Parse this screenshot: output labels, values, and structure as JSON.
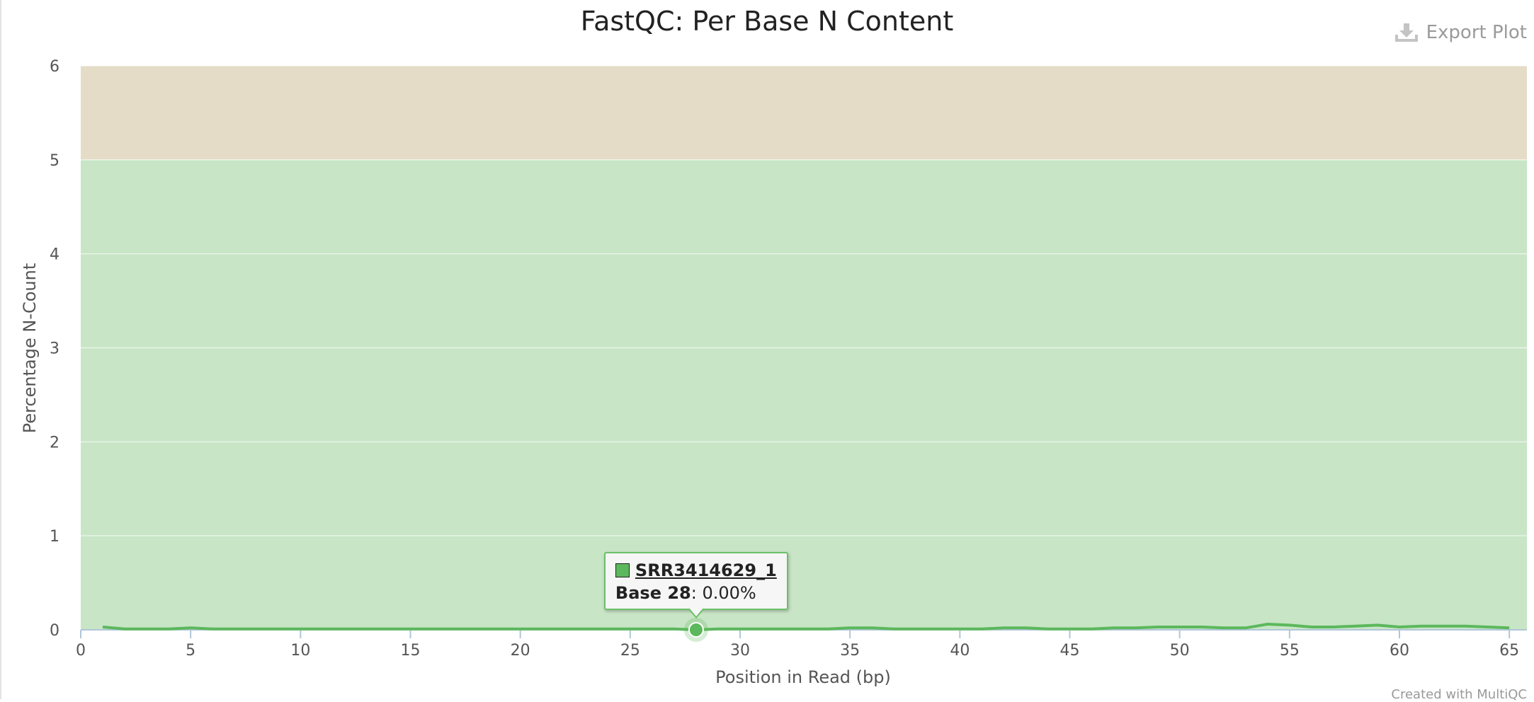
{
  "export_label": "Export Plot",
  "export_icon": "download-icon",
  "credit": "Created with MultiQC",
  "colors": {
    "pass_band": "#c8e5c6",
    "warn_band": "#e4dcc6",
    "series": "#5cb85c"
  },
  "tooltip": {
    "series_name": "SRR3414629_1",
    "base_label": "Base 28",
    "value_text": ": 0.00%"
  },
  "chart_data": {
    "type": "line",
    "title": "FastQC: Per Base N Content",
    "xlabel": "Position in Read (bp)",
    "ylabel": "Percentage N-Count",
    "xlim": [
      0,
      65.8
    ],
    "ylim": [
      0,
      6
    ],
    "x_ticks": [
      0,
      5,
      10,
      15,
      20,
      25,
      30,
      35,
      40,
      45,
      50,
      55,
      60,
      65
    ],
    "y_ticks": [
      0,
      1,
      2,
      3,
      4,
      5,
      6
    ],
    "bands": [
      {
        "from": 0,
        "to": 5,
        "status": "pass"
      },
      {
        "from": 5,
        "to": 6,
        "status": "warn"
      }
    ],
    "highlight": {
      "x": 28,
      "y": 0.0
    },
    "series": [
      {
        "name": "SRR3414629_1",
        "x": [
          1,
          2,
          3,
          4,
          5,
          6,
          7,
          8,
          9,
          10,
          11,
          12,
          13,
          14,
          15,
          16,
          17,
          18,
          19,
          20,
          21,
          22,
          23,
          24,
          25,
          26,
          27,
          28,
          29,
          30,
          31,
          32,
          33,
          34,
          35,
          36,
          37,
          38,
          39,
          40,
          41,
          42,
          43,
          44,
          45,
          46,
          47,
          48,
          49,
          50,
          51,
          52,
          53,
          54,
          55,
          56,
          57,
          58,
          59,
          60,
          61,
          62,
          63,
          64,
          65
        ],
        "values": [
          0.03,
          0.01,
          0.01,
          0.01,
          0.02,
          0.01,
          0.01,
          0.01,
          0.01,
          0.01,
          0.01,
          0.01,
          0.01,
          0.01,
          0.01,
          0.01,
          0.01,
          0.01,
          0.01,
          0.01,
          0.01,
          0.01,
          0.01,
          0.01,
          0.01,
          0.01,
          0.01,
          0.0,
          0.01,
          0.01,
          0.01,
          0.01,
          0.01,
          0.01,
          0.02,
          0.02,
          0.01,
          0.01,
          0.01,
          0.01,
          0.01,
          0.02,
          0.02,
          0.01,
          0.01,
          0.01,
          0.02,
          0.02,
          0.03,
          0.03,
          0.03,
          0.02,
          0.02,
          0.06,
          0.05,
          0.03,
          0.03,
          0.04,
          0.05,
          0.03,
          0.04,
          0.04,
          0.04,
          0.03,
          0.02
        ]
      }
    ]
  }
}
